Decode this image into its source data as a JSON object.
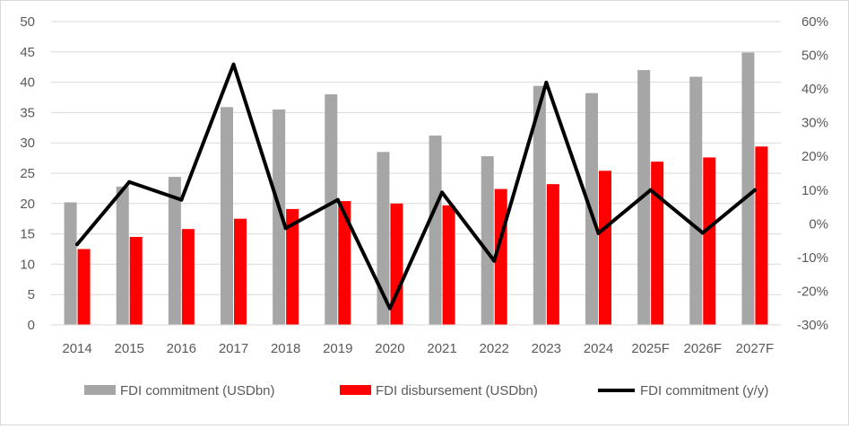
{
  "chart_data": {
    "type": "bar",
    "categories": [
      "2014",
      "2015",
      "2016",
      "2017",
      "2018",
      "2019",
      "2020",
      "2021",
      "2022",
      "2023",
      "2024",
      "2025F",
      "2026F",
      "2027F"
    ],
    "series": [
      {
        "name": "FDI commitment (USDbn)",
        "type": "bar",
        "axis": "left",
        "color": "#a6a6a6",
        "values": [
          20.2,
          22.8,
          24.4,
          35.9,
          35.5,
          38.0,
          28.5,
          31.2,
          27.8,
          39.4,
          38.2,
          42.0,
          40.9,
          44.9
        ]
      },
      {
        "name": "FDI disbursement (USDbn)",
        "type": "bar",
        "axis": "left",
        "color": "#ff0000",
        "values": [
          12.5,
          14.5,
          15.8,
          17.5,
          19.1,
          20.4,
          20.0,
          19.7,
          22.4,
          23.2,
          25.4,
          26.9,
          27.6,
          29.4
        ]
      },
      {
        "name": "FDI commitment (y/y)",
        "type": "line",
        "axis": "right",
        "color": "#000000",
        "values": [
          -6.1,
          12.4,
          7.1,
          47.3,
          -1.3,
          7.1,
          -25.1,
          9.3,
          -11.0,
          41.9,
          -2.8,
          10.0,
          -2.7,
          10.0
        ]
      }
    ],
    "y_left": {
      "min": 0,
      "max": 50,
      "step": 5,
      "ticks": [
        "0",
        "5",
        "10",
        "15",
        "20",
        "25",
        "30",
        "35",
        "40",
        "45",
        "50"
      ]
    },
    "y_right": {
      "min": -30,
      "max": 60,
      "step": 10,
      "ticks": [
        "-30%",
        "-20%",
        "-10%",
        "0%",
        "10%",
        "20%",
        "30%",
        "40%",
        "50%",
        "60%"
      ]
    },
    "grid": true,
    "legend": "bottom",
    "title": "",
    "xlabel": "",
    "ylabel": ""
  }
}
